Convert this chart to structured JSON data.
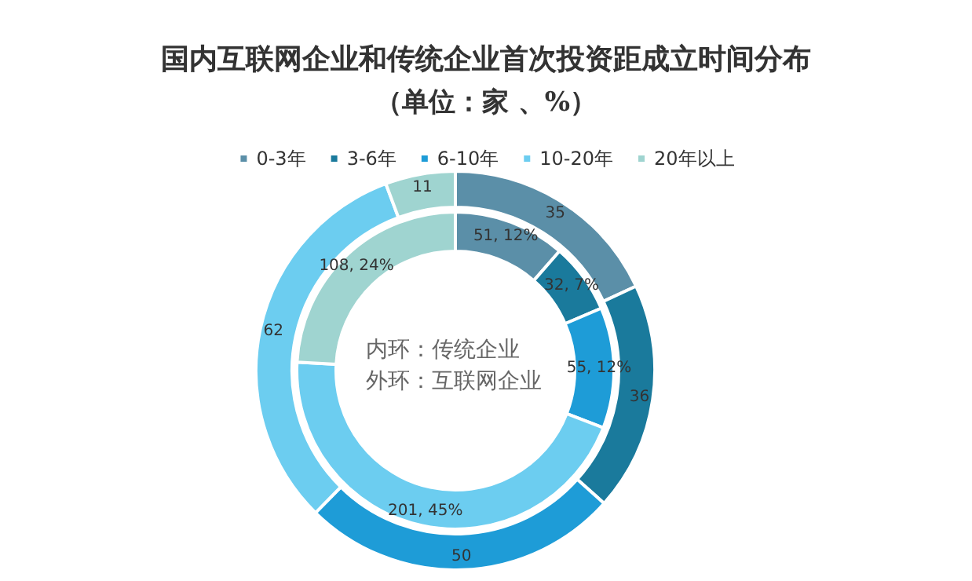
{
  "chart_data": {
    "type": "donut",
    "title": "国内互联网企业和传统企业首次投资距成立时间分布",
    "subtitle": "（单位：家 、%）",
    "categories": [
      "0-3年",
      "3-6年",
      "6-10年",
      "10-20年",
      "20年以上"
    ],
    "colors": [
      "#5b8fa8",
      "#1a7a9c",
      "#1e9cd7",
      "#6ccdf0",
      "#9fd4d0"
    ],
    "series": [
      {
        "values": [
          51,
          32,
          55,
          201,
          108
        ],
        "value_labels": [
          "51, 12%",
          "32, 7%",
          "55, 12%",
          "201, 45%",
          "108, 24%"
        ]
      },
      {
        "values": [
          35,
          36,
          50,
          62,
          11
        ],
        "value_labels": [
          "35",
          "36",
          "50",
          "62",
          "11"
        ]
      }
    ],
    "legend": "top",
    "annotations": [
      "内环：传统企业",
      "外环：互联网企业"
    ]
  }
}
